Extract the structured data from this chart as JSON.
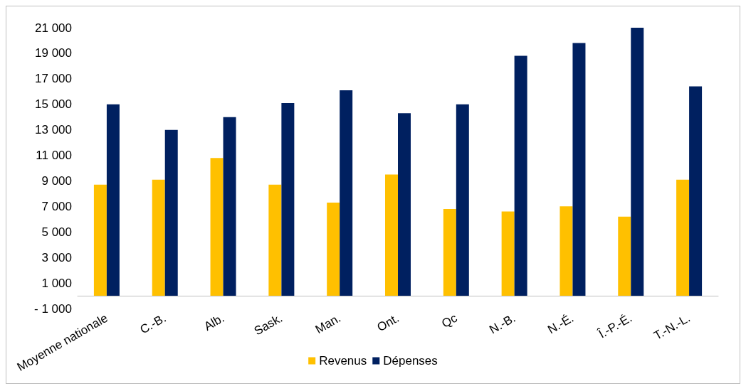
{
  "chart_data": {
    "type": "bar",
    "categories": [
      "Moyenne nationale",
      "C.-B.",
      "Alb.",
      "Sask.",
      "Man.",
      "Ont.",
      "Qc",
      "N.-B.",
      "N.-É.",
      "Î.-P.-É.",
      "T.-N.-L."
    ],
    "series": [
      {
        "name": "Revenus",
        "color": "#ffc000",
        "values": [
          8700,
          9100,
          10800,
          8700,
          7300,
          9500,
          6800,
          6600,
          7000,
          6200,
          9100
        ]
      },
      {
        "name": "Dépenses",
        "color": "#002060",
        "values": [
          15000,
          13000,
          14000,
          15100,
          16100,
          14300,
          15000,
          18800,
          19800,
          21000,
          16400
        ]
      }
    ],
    "ylim": [
      -1000,
      21000
    ],
    "yticks": [
      {
        "value": -1000,
        "label": "- 1 000"
      },
      {
        "value": 1000,
        "label": "1 000"
      },
      {
        "value": 3000,
        "label": "3 000"
      },
      {
        "value": 5000,
        "label": "5 000"
      },
      {
        "value": 7000,
        "label": "7 000"
      },
      {
        "value": 9000,
        "label": "9 000"
      },
      {
        "value": 11000,
        "label": "11 000"
      },
      {
        "value": 13000,
        "label": "13 000"
      },
      {
        "value": 15000,
        "label": "15 000"
      },
      {
        "value": 17000,
        "label": "17 000"
      },
      {
        "value": 19000,
        "label": "19 000"
      },
      {
        "value": 21000,
        "label": "21 000"
      }
    ],
    "grid": false,
    "legend": "bottom"
  }
}
